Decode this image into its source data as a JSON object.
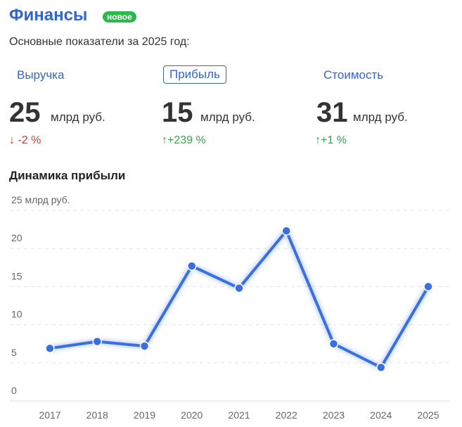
{
  "header": {
    "title": "Финансы",
    "badge": "новое",
    "subtitle": "Основные показатели за 2025 год:"
  },
  "metrics": [
    {
      "tab": "Выручка",
      "value": "25",
      "unit": "млрд руб.",
      "change": "↓ -2 %",
      "direction": "down"
    },
    {
      "tab": "Прибыль",
      "value": "15",
      "unit": "млрд руб.",
      "change": "↑+239 %",
      "direction": "up"
    },
    {
      "tab": "Стоимость",
      "value": "31",
      "unit": "млрд руб.",
      "change": "↑+1 %",
      "direction": "up"
    }
  ],
  "chart_data": {
    "type": "line",
    "title": "Динамика прибыли",
    "categories": [
      "2017",
      "2018",
      "2019",
      "2020",
      "2021",
      "2022",
      "2023",
      "2024",
      "2025"
    ],
    "series": [
      {
        "name": "Прибыль",
        "color": "#3a6fe0",
        "values": [
          6.9,
          7.8,
          7.2,
          17.7,
          14.8,
          22.3,
          7.5,
          4.4,
          15
        ]
      }
    ],
    "ylim": [
      0,
      25
    ],
    "yticks": [
      0,
      5,
      10,
      15,
      20,
      {
        "value": 25,
        "label": "25 млрд руб."
      }
    ],
    "grid": true
  }
}
